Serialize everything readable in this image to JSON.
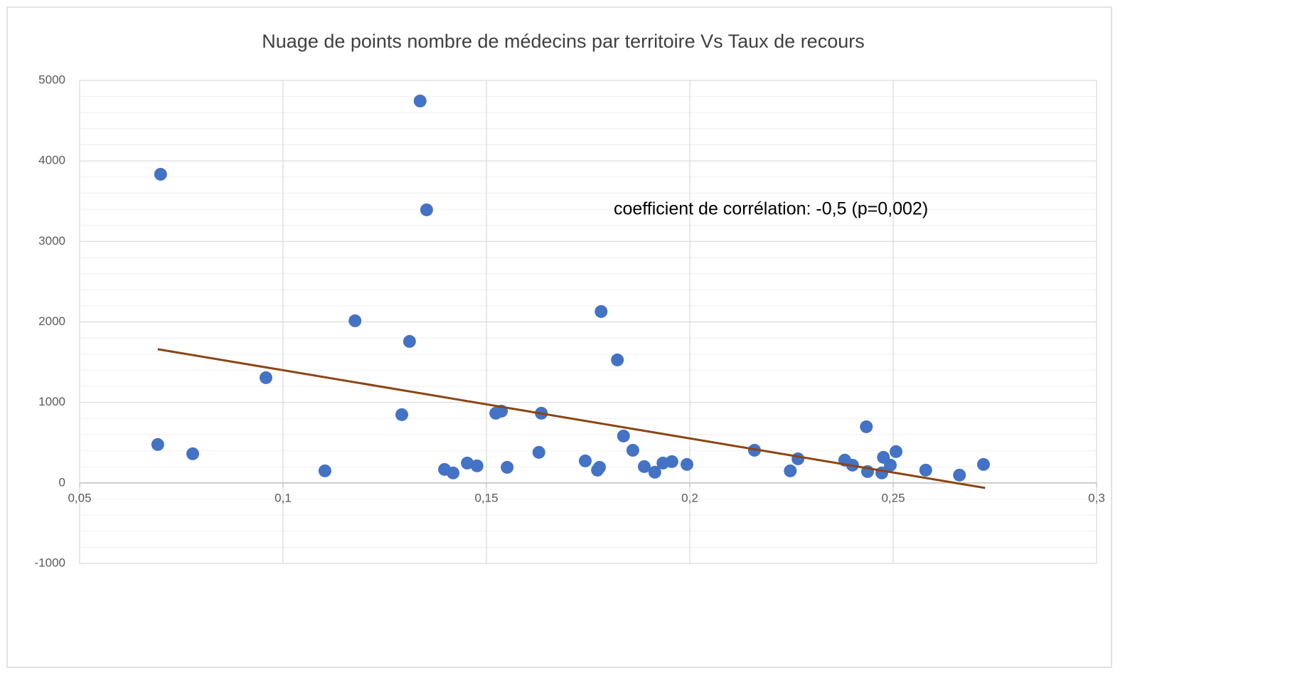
{
  "chart_data": {
    "type": "scatter",
    "title": "Nuage de points nombre de médecins par territoire Vs Taux de recours",
    "annotation": "coefficient de corrélation: -0,5 (p=0,002)",
    "series": [
      {
        "color": "#4472c4",
        "x": [
          0.0699,
          0.0692,
          0.0778,
          0.0958,
          0.1103,
          0.1177,
          0.1292,
          0.1311,
          0.1337,
          0.1353,
          0.1397,
          0.1418,
          0.1453,
          0.1477,
          0.1523,
          0.1537,
          0.1551,
          0.1629,
          0.1635,
          0.1743,
          0.1773,
          0.1778,
          0.1782,
          0.1822,
          0.1837,
          0.186,
          0.1888,
          0.1914,
          0.1934,
          0.1956,
          0.1993,
          0.2159,
          0.2247,
          0.2266,
          0.2381,
          0.24,
          0.2434,
          0.2437,
          0.2472,
          0.2476,
          0.2493,
          0.2507,
          0.258,
          0.2663,
          0.2722
        ],
        "values": [
          3834,
          477,
          362,
          1307,
          150,
          2014,
          848,
          1758,
          4744,
          3392,
          168,
          124,
          247,
          212,
          866,
          892,
          194,
          380,
          866,
          274,
          159,
          194,
          2129,
          1528,
          583,
          406,
          203,
          133,
          247,
          265,
          230,
          406,
          150,
          300,
          283,
          221,
          698,
          141,
          124,
          318,
          221,
          389,
          159,
          97,
          230
        ]
      }
    ],
    "trendline": {
      "color": "#8b4513",
      "x": [
        0.0692,
        0.2726
      ],
      "values": [
        1661,
        -62
      ]
    },
    "xlim": [
      0.05,
      0.3
    ],
    "xticks": [
      {
        "value": 0.05,
        "label": "0,05"
      },
      {
        "value": 0.1,
        "label": "0,1"
      },
      {
        "value": 0.15,
        "label": "0,15"
      },
      {
        "value": 0.2,
        "label": "0,2"
      },
      {
        "value": 0.25,
        "label": "0,25"
      },
      {
        "value": 0.3,
        "label": "0,3"
      }
    ],
    "ylim": [
      -1000,
      5000
    ],
    "yticks": [
      -1000,
      0,
      1000,
      2000,
      3000,
      4000,
      5000
    ],
    "grid": true
  }
}
